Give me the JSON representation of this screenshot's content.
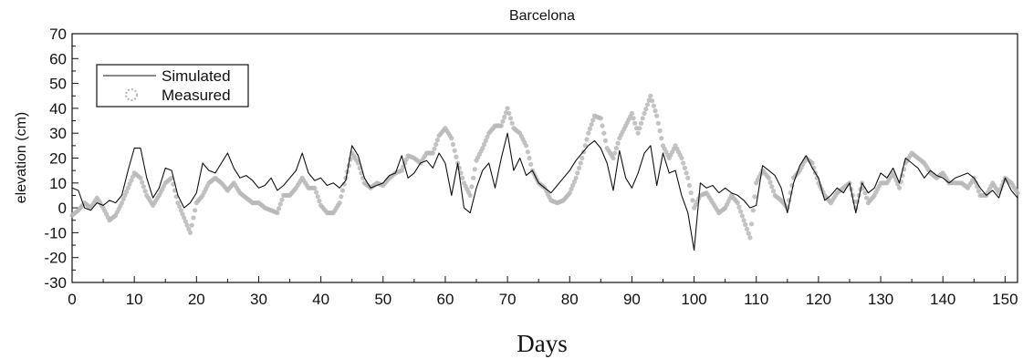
{
  "chart_data": {
    "type": "line",
    "title": "Barcelona",
    "xlabel": "Days",
    "ylabel": "elevation (cm)",
    "xlim": [
      0,
      152
    ],
    "ylim": [
      -30,
      70
    ],
    "x_ticks": [
      0,
      10,
      20,
      30,
      40,
      50,
      60,
      70,
      80,
      90,
      100,
      110,
      120,
      130,
      140,
      150
    ],
    "y_ticks": [
      70,
      60,
      50,
      40,
      30,
      20,
      10,
      0,
      -10,
      -20,
      -30
    ],
    "grid": false,
    "legend_position": "top-left",
    "series": [
      {
        "name": "Simulated",
        "style": "solid-line",
        "color": "#111111",
        "x": [
          0,
          1,
          2,
          3,
          4,
          5,
          6,
          7,
          8,
          9,
          10,
          11,
          12,
          13,
          14,
          15,
          16,
          17,
          18,
          19,
          20,
          21,
          22,
          23,
          24,
          25,
          26,
          27,
          28,
          29,
          30,
          31,
          32,
          33,
          34,
          35,
          36,
          37,
          38,
          39,
          40,
          41,
          42,
          43,
          44,
          45,
          46,
          47,
          48,
          49,
          50,
          51,
          52,
          53,
          54,
          55,
          56,
          57,
          58,
          59,
          60,
          61,
          62,
          63,
          64,
          65,
          66,
          67,
          68,
          69,
          70,
          71,
          72,
          73,
          74,
          75,
          76,
          77,
          78,
          79,
          80,
          81,
          82,
          83,
          84,
          85,
          86,
          87,
          88,
          89,
          90,
          91,
          92,
          93,
          94,
          95,
          96,
          97,
          98,
          99,
          100,
          101,
          102,
          103,
          104,
          105,
          106,
          107,
          108,
          109,
          110,
          111,
          112,
          113,
          114,
          115,
          116,
          117,
          118,
          119,
          120,
          121,
          122,
          123,
          124,
          125,
          126,
          127,
          128,
          129,
          130,
          131,
          132,
          133,
          134,
          135,
          136,
          137,
          138,
          139,
          140,
          141,
          142,
          143,
          144,
          145,
          146,
          147,
          148,
          149,
          150,
          151,
          152
        ],
        "y": [
          8,
          7,
          0,
          -1,
          2,
          1,
          3,
          2,
          5,
          15,
          24,
          24,
          12,
          4,
          8,
          16,
          15,
          5,
          0,
          2,
          6,
          18,
          15,
          14,
          18,
          22,
          16,
          12,
          13,
          11,
          8,
          9,
          12,
          7,
          9,
          12,
          15,
          22,
          14,
          11,
          12,
          9,
          10,
          8,
          11,
          25,
          21,
          12,
          8,
          9,
          10,
          13,
          14,
          21,
          12,
          14,
          18,
          19,
          16,
          22,
          18,
          5,
          18,
          0,
          -2,
          8,
          15,
          18,
          8,
          20,
          30,
          15,
          20,
          13,
          15,
          10,
          8,
          6,
          9,
          12,
          15,
          19,
          22,
          25,
          27,
          24,
          18,
          7,
          23,
          12,
          8,
          14,
          22,
          25,
          9,
          22,
          14,
          15,
          5,
          -2,
          -17,
          10,
          8,
          9,
          6,
          8,
          6,
          5,
          3,
          0,
          1,
          17,
          15,
          13,
          8,
          -2,
          10,
          17,
          21,
          16,
          12,
          3,
          5,
          8,
          6,
          10,
          -2,
          10,
          6,
          8,
          14,
          12,
          16,
          10,
          20,
          18,
          16,
          12,
          15,
          13,
          12,
          10,
          12,
          13,
          14,
          12,
          8,
          5,
          7,
          4,
          12,
          7,
          4
        ]
      },
      {
        "name": "Measured",
        "style": "gray-dotted",
        "color": "#b3b3b3",
        "x": [
          0,
          1,
          2,
          3,
          4,
          5,
          6,
          7,
          8,
          9,
          10,
          11,
          12,
          13,
          14,
          15,
          16,
          17,
          18,
          19,
          20,
          21,
          22,
          23,
          24,
          25,
          26,
          27,
          28,
          29,
          30,
          31,
          32,
          33,
          34,
          35,
          36,
          37,
          38,
          39,
          40,
          41,
          42,
          43,
          44,
          45,
          46,
          47,
          48,
          49,
          50,
          51,
          52,
          53,
          54,
          55,
          56,
          57,
          58,
          59,
          60,
          61,
          62,
          63,
          64,
          65,
          66,
          67,
          68,
          69,
          70,
          71,
          72,
          73,
          74,
          75,
          76,
          77,
          78,
          79,
          80,
          81,
          82,
          83,
          84,
          85,
          86,
          87,
          88,
          89,
          90,
          91,
          92,
          93,
          94,
          95,
          96,
          97,
          98,
          99,
          100,
          101,
          102,
          103,
          104,
          105,
          106,
          107,
          108,
          109,
          110,
          111,
          112,
          113,
          114,
          115,
          116,
          117,
          118,
          119,
          120,
          121,
          122,
          123,
          124,
          125,
          126,
          127,
          128,
          129,
          130,
          131,
          132,
          133,
          134,
          135,
          136,
          137,
          138,
          139,
          140,
          141,
          142,
          143,
          144,
          145,
          146,
          147,
          148,
          149,
          150,
          151,
          152
        ],
        "y": [
          -3,
          -1,
          2,
          0,
          4,
          0,
          -5,
          -3,
          2,
          8,
          14,
          12,
          5,
          1,
          5,
          10,
          12,
          2,
          -4,
          -10,
          2,
          5,
          10,
          12,
          10,
          7,
          10,
          6,
          4,
          2,
          2,
          0,
          -1,
          -2,
          5,
          5,
          8,
          12,
          8,
          8,
          1,
          -2,
          -2,
          2,
          12,
          22,
          18,
          10,
          8,
          10,
          9,
          12,
          14,
          15,
          21,
          20,
          18,
          22,
          22,
          29,
          32,
          28,
          18,
          10,
          5,
          19,
          24,
          30,
          33,
          33,
          40,
          32,
          30,
          25,
          15,
          10,
          8,
          3,
          2,
          3,
          6,
          12,
          20,
          30,
          37,
          36,
          24,
          20,
          28,
          33,
          38,
          30,
          38,
          45,
          37,
          25,
          20,
          25,
          20,
          12,
          0,
          5,
          6,
          2,
          -2,
          0,
          5,
          2,
          -5,
          -12,
          10,
          15,
          12,
          5,
          3,
          0,
          12,
          15,
          20,
          18,
          10,
          5,
          2,
          6,
          8,
          10,
          0,
          10,
          2,
          5,
          10,
          10,
          14,
          8,
          18,
          22,
          20,
          18,
          14,
          12,
          14,
          10,
          10,
          10,
          8,
          12,
          5,
          5,
          10,
          6,
          12,
          10,
          6
        ]
      }
    ]
  }
}
